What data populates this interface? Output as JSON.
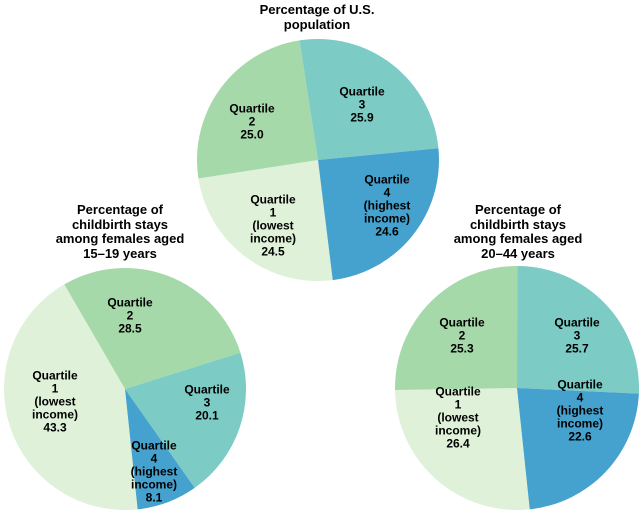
{
  "page": {
    "background": "#ffffff"
  },
  "colors": {
    "quartile1": "#DFF2D9",
    "quartile2": "#A6D9A9",
    "quartile3": "#7CCBC5",
    "quartile4": "#45A1CE",
    "text": "#000000"
  },
  "chart_data": [
    {
      "id": "us-population",
      "type": "pie",
      "title": "Percentage of U.S. population",
      "title_lines": [
        "Percentage of U.S.",
        "population"
      ],
      "start_angle_deg": 173,
      "direction": "clockwise",
      "slices": [
        {
          "label": "Quartile 1 (lowest income)",
          "value": 24.5,
          "display": "24.5",
          "color_key": "quartile1",
          "label_lines": [
            "Quartile",
            "1",
            "(lowest",
            "income)",
            "24.5"
          ]
        },
        {
          "label": "Quartile 2",
          "value": 25.0,
          "display": "25.0",
          "color_key": "quartile2",
          "label_lines": [
            "Quartile",
            "2",
            "25.0"
          ]
        },
        {
          "label": "Quartile 3",
          "value": 25.9,
          "display": "25.9",
          "color_key": "quartile3",
          "label_lines": [
            "Quartile",
            "3",
            "25.9"
          ]
        },
        {
          "label": "Quartile 4 (highest income)",
          "value": 24.6,
          "display": "24.6",
          "color_key": "quartile4",
          "label_lines": [
            "Quartile",
            "4",
            "(highest",
            "income)",
            "24.6"
          ]
        }
      ]
    },
    {
      "id": "childbirth-stays-15-19",
      "type": "pie",
      "title": "Percentage of childbirth stays among females aged 15–19 years",
      "title_lines": [
        "Percentage of",
        "childbirth stays",
        "among females aged",
        "15–19 years"
      ],
      "start_angle_deg": 174,
      "direction": "clockwise",
      "slices": [
        {
          "label": "Quartile 1 (lowest income)",
          "value": 43.3,
          "display": "43.3",
          "color_key": "quartile1",
          "label_lines": [
            "Quartile",
            "1",
            "(lowest",
            "income)",
            "43.3"
          ]
        },
        {
          "label": "Quartile 2",
          "value": 28.5,
          "display": "28.5",
          "color_key": "quartile2",
          "label_lines": [
            "Quartile",
            "2",
            "28.5"
          ]
        },
        {
          "label": "Quartile 3",
          "value": 20.1,
          "display": "20.1",
          "color_key": "quartile3",
          "label_lines": [
            "Quartile",
            "3",
            "20.1"
          ]
        },
        {
          "label": "Quartile 4 (highest income)",
          "value": 8.1,
          "display": "8.1",
          "color_key": "quartile4",
          "label_lines": [
            "Quartile",
            "4",
            "(highest",
            "income)",
            "8.1"
          ]
        }
      ]
    },
    {
      "id": "childbirth-stays-20-44",
      "type": "pie",
      "title": "Percentage of childbirth stays among females aged 20–44 years",
      "title_lines": [
        "Percentage of",
        "childbirth stays",
        "among females aged",
        "20–44 years"
      ],
      "start_angle_deg": 174,
      "direction": "clockwise",
      "slices": [
        {
          "label": "Quartile 1 (lowest income)",
          "value": 26.4,
          "display": "26.4",
          "color_key": "quartile1",
          "label_lines": [
            "Quartile",
            "1",
            "(lowest",
            "income)",
            "26.4"
          ]
        },
        {
          "label": "Quartile 2",
          "value": 25.3,
          "display": "25.3",
          "color_key": "quartile2",
          "label_lines": [
            "Quartile",
            "2",
            "25.3"
          ]
        },
        {
          "label": "Quartile 3",
          "value": 25.7,
          "display": "25.7",
          "color_key": "quartile3",
          "label_lines": [
            "Quartile",
            "3",
            "25.7"
          ]
        },
        {
          "label": "Quartile 4 (highest income)",
          "value": 22.6,
          "display": "22.6",
          "color_key": "quartile4",
          "label_lines": [
            "Quartile",
            "4",
            "(highest",
            "income)",
            "22.6"
          ]
        }
      ]
    }
  ]
}
